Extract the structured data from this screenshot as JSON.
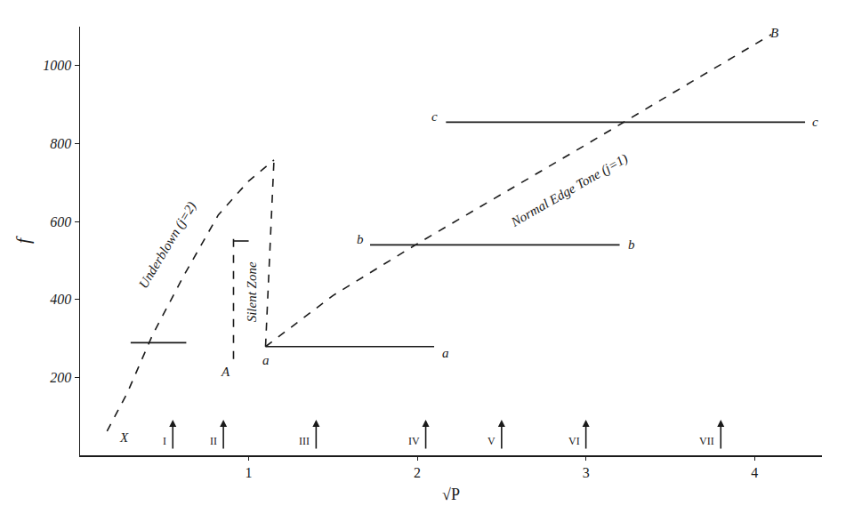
{
  "chart_data": {
    "type": "line",
    "x_label": "√P",
    "y_label": "f",
    "xlim": [
      0,
      4.4
    ],
    "xticks": [
      1,
      2,
      3,
      4
    ],
    "ylim": [
      0,
      1100
    ],
    "yticks": [
      200,
      400,
      600,
      800,
      1000
    ],
    "grid": false,
    "color": "#1a1a1a",
    "series": [
      {
        "line_style": "dashed",
        "x": [
          0.16,
          0.28,
          0.43,
          0.61,
          0.82,
          1.0,
          1.15
        ],
        "values": [
          62,
          160,
          309,
          457,
          617,
          704,
          758
        ]
      },
      {
        "line_style": "dashed",
        "x": [
          0.91,
          0.91
        ],
        "values": [
          247,
          556
        ]
      },
      {
        "line_style": "dashed",
        "x": [
          1.1,
          1.15
        ],
        "values": [
          279,
          758
        ]
      },
      {
        "line_style": "dashed",
        "x": [
          1.1,
          1.5,
          2.0,
          2.5,
          3.0,
          3.5,
          4.1
        ],
        "values": [
          279,
          410,
          543,
          670,
          797,
          926,
          1080
        ]
      },
      {
        "line_style": "solid",
        "x": [
          1.1,
          2.1
        ],
        "values": [
          279,
          279
        ]
      },
      {
        "line_style": "solid",
        "x": [
          1.72,
          3.2
        ],
        "values": [
          540,
          540
        ]
      },
      {
        "line_style": "solid",
        "x": [
          2.17,
          4.3
        ],
        "values": [
          855,
          855
        ]
      },
      {
        "line_style": "solid",
        "x": [
          0.3,
          0.63
        ],
        "values": [
          289,
          289
        ]
      },
      {
        "line_style": "solid",
        "x": [
          0.91,
          1.0
        ],
        "values": [
          550,
          550
        ]
      }
    ],
    "annotations": [
      {
        "text": "Underblown (j=2)",
        "x": 0.52,
        "y": 540
      },
      {
        "text": "Silent Zone",
        "x": 1.02,
        "y": 420
      },
      {
        "text": "Normal Edge Tone (j=1)",
        "x": 2.9,
        "y": 680
      },
      {
        "text": "A",
        "x": 0.86,
        "y": 215
      },
      {
        "text": "a",
        "x": 1.1,
        "y": 245
      },
      {
        "text": "a",
        "x": 2.17,
        "y": 262
      },
      {
        "text": "b",
        "x": 1.66,
        "y": 555
      },
      {
        "text": "b",
        "x": 3.27,
        "y": 540
      },
      {
        "text": "c",
        "x": 2.1,
        "y": 870
      },
      {
        "text": "c",
        "x": 4.36,
        "y": 855
      },
      {
        "text": "B",
        "x": 4.12,
        "y": 1085
      },
      {
        "text": "X",
        "x": 0.26,
        "y": 45
      }
    ],
    "arrows": [
      {
        "x": 0.55,
        "label": "I"
      },
      {
        "x": 0.85,
        "label": "II"
      },
      {
        "x": 1.4,
        "label": "III"
      },
      {
        "x": 2.05,
        "label": "IV"
      },
      {
        "x": 2.5,
        "label": "V"
      },
      {
        "x": 3.0,
        "label": "VI"
      },
      {
        "x": 3.8,
        "label": "VII"
      }
    ]
  }
}
